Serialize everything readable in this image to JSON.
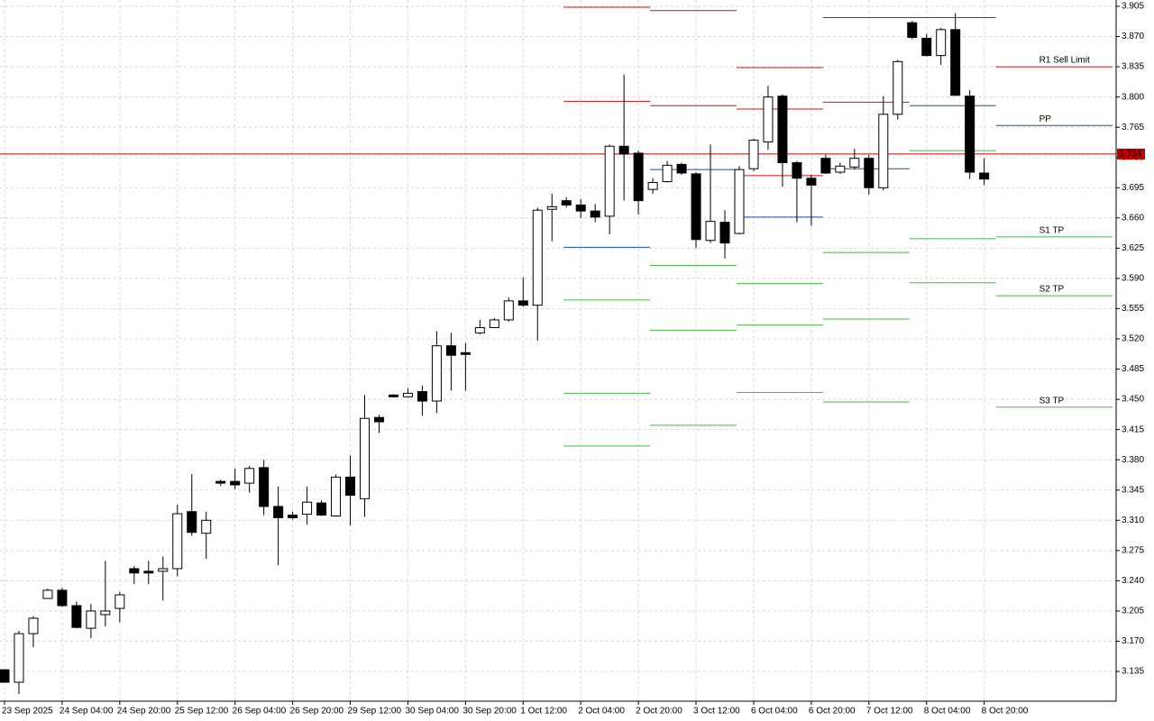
{
  "chart_data": {
    "type": "candlestick",
    "categories": [
      "23 Sep 2025",
      null,
      null,
      null,
      "24 Sep 04:00",
      null,
      null,
      null,
      "24 Sep 20:00",
      null,
      null,
      null,
      "25 Sep 12:00",
      null,
      null,
      null,
      "26 Sep 04:00",
      null,
      null,
      null,
      "26 Sep 20:00",
      null,
      null,
      null,
      "29 Sep 12:00",
      null,
      null,
      null,
      "30 Sep 04:00",
      null,
      null,
      null,
      "30 Sep 20:00",
      null,
      null,
      null,
      "1 Oct 12:00",
      null,
      null,
      null,
      "2 Oct 04:00",
      null,
      null,
      null,
      "2 Oct 20:00",
      null,
      null,
      null,
      "3 Oct 12:00",
      null,
      null,
      null,
      "6 Oct 04:00",
      null,
      null,
      null,
      "6 Oct 20:00",
      null,
      null,
      null,
      "7 Oct 12:00",
      null,
      null,
      null,
      "8 Oct 04:00",
      null,
      null,
      null,
      "8 Oct 20:00"
    ],
    "open": [
      3.137,
      3.1225,
      3.1788,
      3.2195,
      3.229,
      3.2112,
      3.185,
      3.2008,
      3.208,
      3.254,
      3.251,
      3.251,
      3.254,
      3.32,
      3.295,
      3.355,
      3.355,
      3.353,
      3.371,
      3.326,
      3.316,
      3.317,
      3.33,
      3.315,
      3.36,
      3.335,
      3.429,
      3.455,
      3.453,
      3.459,
      3.448,
      3.512,
      3.504,
      3.527,
      3.533,
      3.542,
      3.564,
      3.559,
      3.67,
      3.68,
      3.675,
      3.668,
      3.662,
      3.743,
      3.735,
      3.693,
      3.702,
      3.722,
      3.711,
      3.634,
      3.655,
      3.642,
      3.717,
      3.748,
      3.801,
      3.724,
      3.706,
      3.729,
      3.713,
      3.719,
      3.729,
      3.695,
      3.78,
      3.886,
      3.868,
      3.848,
      3.878,
      3.801,
      3.712
    ],
    "high": [
      3.137,
      3.182,
      3.199,
      3.231,
      3.232,
      3.216,
      3.213,
      3.263,
      3.227,
      3.257,
      3.263,
      3.268,
      3.328,
      3.3635,
      3.32,
      3.357,
      3.37,
      3.373,
      3.38,
      3.349,
      3.32,
      3.349,
      3.333,
      3.363,
      3.385,
      3.455,
      3.432,
      3.456,
      3.463,
      3.466,
      3.529,
      3.527,
      3.515,
      3.542,
      3.544,
      3.568,
      3.591,
      3.672,
      3.688,
      3.684,
      3.682,
      3.676,
      3.745,
      3.826,
      3.738,
      3.706,
      3.726,
      3.724,
      3.713,
      3.745,
      3.669,
      3.72,
      3.752,
      3.813,
      3.803,
      3.726,
      3.71,
      3.733,
      3.724,
      3.74,
      3.733,
      3.801,
      3.843,
      3.888,
      3.873,
      3.88,
      3.897,
      3.808,
      3.729
    ],
    "low": [
      3.122,
      3.109,
      3.163,
      3.2195,
      3.21,
      3.185,
      3.1736,
      3.187,
      3.192,
      3.236,
      3.236,
      3.217,
      3.245,
      3.292,
      3.2654,
      3.35,
      3.346,
      3.342,
      3.316,
      3.258,
      3.311,
      3.305,
      3.315,
      3.314,
      3.304,
      3.314,
      3.411,
      3.452,
      3.452,
      3.431,
      3.434,
      3.46,
      3.46,
      3.525,
      3.533,
      3.54,
      3.557,
      3.518,
      3.633,
      3.672,
      3.66,
      3.655,
      3.641,
      3.68,
      3.664,
      3.688,
      3.701,
      3.71,
      3.625,
      3.631,
      3.613,
      3.641,
      3.714,
      3.739,
      3.696,
      3.655,
      3.651,
      3.711,
      3.711,
      3.716,
      3.687,
      3.692,
      3.774,
      3.867,
      3.847,
      3.837,
      3.801,
      3.705,
      3.698
    ],
    "close": [
      3.1225,
      3.1788,
      3.1966,
      3.229,
      3.2112,
      3.186,
      3.205,
      3.205,
      3.2237,
      3.249,
      3.249,
      3.254,
      3.3176,
      3.296,
      3.31,
      3.353,
      3.351,
      3.37,
      3.326,
      3.313,
      3.313,
      3.331,
      3.316,
      3.36,
      3.339,
      3.428,
      3.424,
      3.453,
      3.457,
      3.448,
      3.512,
      3.501,
      3.502,
      3.533,
      3.542,
      3.564,
      3.559,
      3.669,
      3.673,
      3.675,
      3.668,
      3.661,
      3.743,
      3.734,
      3.68,
      3.701,
      3.721,
      3.712,
      3.635,
      3.656,
      3.631,
      3.716,
      3.75,
      3.8,
      3.724,
      3.706,
      3.698,
      3.712,
      3.72,
      3.729,
      3.695,
      3.78,
      3.841,
      3.869,
      3.848,
      3.878,
      3.802,
      3.713,
      3.705
    ],
    "up_color": "#ffffff",
    "down_color": "#000000",
    "wick_color": "#000000",
    "ylim": [
      3.1006,
      3.9123
    ],
    "yticks": [
      {
        "value": 3.905,
        "label": "3.905"
      },
      {
        "value": 3.87,
        "label": "3.870"
      },
      {
        "value": 3.835,
        "label": "3.835"
      },
      {
        "value": 3.8,
        "label": "3.800"
      },
      {
        "value": 3.765,
        "label": "3.765"
      },
      {
        "value": 3.73,
        "label": "3.730"
      },
      {
        "value": 3.695,
        "label": "3.695"
      },
      {
        "value": 3.66,
        "label": "3.660"
      },
      {
        "value": 3.625,
        "label": "3.625"
      },
      {
        "value": 3.59,
        "label": "3.590"
      },
      {
        "value": 3.555,
        "label": "3.555"
      },
      {
        "value": 3.52,
        "label": "3.520"
      },
      {
        "value": 3.485,
        "label": "3.485"
      },
      {
        "value": 3.45,
        "label": "3.450"
      },
      {
        "value": 3.415,
        "label": "3.415"
      },
      {
        "value": 3.38,
        "label": "3.380"
      },
      {
        "value": 3.345,
        "label": "3.345"
      },
      {
        "value": 3.31,
        "label": "3.310"
      },
      {
        "value": 3.275,
        "label": "3.275"
      },
      {
        "value": 3.24,
        "label": "3.240"
      },
      {
        "value": 3.205,
        "label": "3.205"
      },
      {
        "value": 3.17,
        "label": "3.170"
      },
      {
        "value": 3.135,
        "label": "3.135"
      }
    ],
    "grid": true,
    "current_price": 3.734,
    "current_price_color": "#c00000",
    "pivot_days": [
      {
        "levels": [
          {
            "value": 3.904,
            "color": "#d01010"
          },
          {
            "value": 3.795,
            "color": "#d01010"
          },
          {
            "value": 3.626,
            "color": "#1c4fa0"
          },
          {
            "value": 3.565,
            "color": "#44bb44"
          },
          {
            "value": 3.457,
            "color": "#44bb44"
          },
          {
            "value": 3.396,
            "color": "#44bb44"
          }
        ]
      },
      {
        "levels": [
          {
            "value": 3.9,
            "color": "#d01010"
          },
          {
            "value": 3.79,
            "color": "#d01010"
          },
          {
            "value": 3.716,
            "color": "#1c4fa0"
          },
          {
            "value": 3.605,
            "color": "#44bb44"
          },
          {
            "value": 3.53,
            "color": "#44bb44"
          },
          {
            "value": 3.42,
            "color": "#44bb44"
          }
        ]
      },
      {
        "levels": [
          {
            "value": 3.834,
            "color": "#d01010"
          },
          {
            "value": 3.786,
            "color": "#d01010"
          },
          {
            "value": 3.709,
            "color": "#d01010"
          },
          {
            "value": 3.661,
            "color": "#1c4fa0"
          },
          {
            "value": 3.584,
            "color": "#44bb44"
          },
          {
            "value": 3.536,
            "color": "#44bb44"
          },
          {
            "value": 3.458,
            "color": "#44bb44"
          }
        ]
      },
      {
        "levels": [
          {
            "value": 3.892,
            "color": "#d01010"
          },
          {
            "value": 3.794,
            "color": "#d01010"
          },
          {
            "value": 3.717,
            "color": "#1c4fa0"
          },
          {
            "value": 3.62,
            "color": "#44bb44"
          },
          {
            "value": 3.543,
            "color": "#44bb44"
          },
          {
            "value": 3.447,
            "color": "#44bb44"
          }
        ]
      },
      {
        "levels": [
          {
            "value": 3.892,
            "color": "#d01010"
          },
          {
            "value": 3.79,
            "color": "#1c4fa0"
          },
          {
            "value": 3.738,
            "color": "#44bb44"
          },
          {
            "value": 3.636,
            "color": "#44bb44"
          },
          {
            "value": 3.585,
            "color": "#44bb44"
          }
        ]
      },
      {
        "levels": [
          {
            "value": 3.835,
            "color": "#d01010",
            "label": "R1 Sell Limit"
          },
          {
            "value": 3.767,
            "color": "#1c4fa0",
            "label": "PP"
          },
          {
            "value": 3.638,
            "color": "#44bb44",
            "label": "S1 TP"
          },
          {
            "value": 3.57,
            "color": "#44bb44",
            "label": "S2 TP"
          },
          {
            "value": 3.441,
            "color": "#44bb44",
            "label": "S3 TP"
          }
        ]
      }
    ]
  }
}
